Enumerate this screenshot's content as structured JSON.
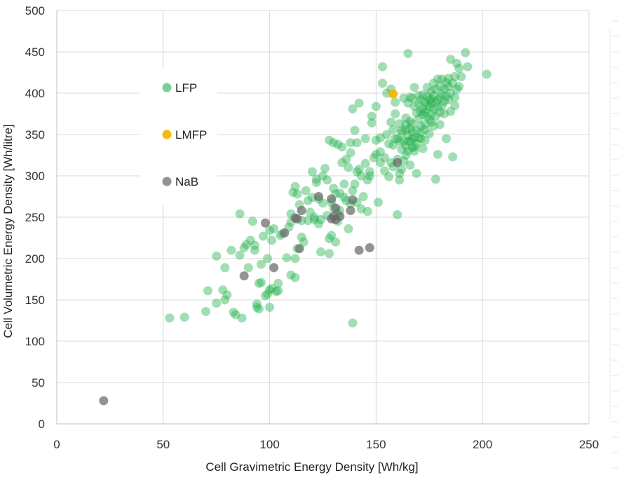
{
  "chart_data": {
    "type": "scatter",
    "xlabel": "Cell Gravimetric Energy Density [Wh/kg]",
    "ylabel": "Cell Volumetric Energy Density [Wh/litre]",
    "xlim": [
      0,
      250
    ],
    "ylim": [
      0,
      500
    ],
    "x_ticks": [
      0,
      50,
      100,
      150,
      200,
      250
    ],
    "y_ticks": [
      0,
      50,
      100,
      150,
      200,
      250,
      300,
      350,
      400,
      450,
      500
    ],
    "grid": true,
    "legend_position": "upper-left",
    "series": [
      {
        "name": "LFP",
        "color": "#22b14c",
        "opacity": 0.42,
        "points": [
          [
            53,
            128
          ],
          [
            60,
            129
          ],
          [
            70,
            136
          ],
          [
            71,
            161
          ],
          [
            75,
            146
          ],
          [
            75,
            203
          ],
          [
            78,
            162
          ],
          [
            79,
            189
          ],
          [
            79,
            150
          ],
          [
            80,
            156
          ],
          [
            82,
            210
          ],
          [
            83,
            135
          ],
          [
            84,
            132
          ],
          [
            86,
            204
          ],
          [
            86,
            254
          ],
          [
            87,
            128
          ],
          [
            88,
            213
          ],
          [
            89,
            217
          ],
          [
            90,
            189
          ],
          [
            91,
            222
          ],
          [
            92,
            245
          ],
          [
            93,
            216
          ],
          [
            93,
            210
          ],
          [
            94,
            141
          ],
          [
            94,
            145
          ],
          [
            95,
            139
          ],
          [
            95,
            170
          ],
          [
            96,
            193
          ],
          [
            96,
            171
          ],
          [
            97,
            227
          ],
          [
            98,
            155
          ],
          [
            99,
            200
          ],
          [
            99,
            157
          ],
          [
            100,
            162
          ],
          [
            100,
            141
          ],
          [
            100,
            234
          ],
          [
            101,
            222
          ],
          [
            101,
            164
          ],
          [
            102,
            236
          ],
          [
            103,
            160
          ],
          [
            104,
            170
          ],
          [
            104,
            161
          ],
          [
            105,
            228
          ],
          [
            106,
            230
          ],
          [
            108,
            201
          ],
          [
            109,
            238
          ],
          [
            110,
            244
          ],
          [
            110,
            180
          ],
          [
            110,
            254
          ],
          [
            111,
            280
          ],
          [
            112,
            200
          ],
          [
            112,
            177
          ],
          [
            112,
            287
          ],
          [
            113,
            278
          ],
          [
            113,
            212
          ],
          [
            114,
            265
          ],
          [
            115,
            246
          ],
          [
            115,
            226
          ],
          [
            116,
            220
          ],
          [
            117,
            282
          ],
          [
            118,
            270
          ],
          [
            118,
            246
          ],
          [
            119,
            256
          ],
          [
            120,
            305
          ],
          [
            120,
            274
          ],
          [
            121,
            250
          ],
          [
            121,
            247
          ],
          [
            122,
            292
          ],
          [
            122,
            296
          ],
          [
            123,
            242
          ],
          [
            123,
            272
          ],
          [
            124,
            208
          ],
          [
            124,
            247
          ],
          [
            125,
            300
          ],
          [
            125,
            267
          ],
          [
            126,
            309
          ],
          [
            127,
            252
          ],
          [
            127,
            295
          ],
          [
            128,
            206
          ],
          [
            128,
            343
          ],
          [
            128,
            224
          ],
          [
            129,
            228
          ],
          [
            129,
            268
          ],
          [
            130,
            261
          ],
          [
            130,
            285
          ],
          [
            130,
            340
          ],
          [
            131,
            220
          ],
          [
            131,
            278
          ],
          [
            132,
            338
          ],
          [
            132,
            245
          ],
          [
            132,
            254
          ],
          [
            133,
            279
          ],
          [
            133,
            258
          ],
          [
            134,
            316
          ],
          [
            134,
            335
          ],
          [
            135,
            290
          ],
          [
            135,
            274
          ],
          [
            136,
            270
          ],
          [
            136,
            320
          ],
          [
            137,
            310
          ],
          [
            137,
            236
          ],
          [
            138,
            340
          ],
          [
            138,
            328
          ],
          [
            138,
            266
          ],
          [
            139,
            122
          ],
          [
            139,
            381
          ],
          [
            139,
            282
          ],
          [
            140,
            290
          ],
          [
            140,
            355
          ],
          [
            141,
            340
          ],
          [
            141,
            305
          ],
          [
            141,
            268
          ],
          [
            142,
            308
          ],
          [
            142,
            388
          ],
          [
            143,
            300
          ],
          [
            143,
            260
          ],
          [
            144,
            275
          ],
          [
            145,
            345
          ],
          [
            145,
            315
          ],
          [
            146,
            295
          ],
          [
            146,
            257
          ],
          [
            147,
            300
          ],
          [
            147,
            305
          ],
          [
            148,
            372
          ],
          [
            148,
            364
          ],
          [
            149,
            322
          ],
          [
            150,
            343
          ],
          [
            150,
            384
          ],
          [
            150,
            326
          ],
          [
            151,
            268
          ],
          [
            152,
            346
          ],
          [
            152,
            316
          ],
          [
            152,
            329
          ],
          [
            153,
            412
          ],
          [
            153,
            432
          ],
          [
            154,
            322
          ],
          [
            154,
            306
          ],
          [
            155,
            400
          ],
          [
            155,
            350
          ],
          [
            156,
            339
          ],
          [
            156,
            299
          ],
          [
            157,
            405
          ],
          [
            157,
            365
          ],
          [
            157,
            316
          ],
          [
            158,
            356
          ],
          [
            158,
            311
          ],
          [
            158,
            337
          ],
          [
            159,
            345
          ],
          [
            159,
            375
          ],
          [
            159,
            389
          ],
          [
            160,
            345
          ],
          [
            160,
            320
          ],
          [
            160,
            253
          ],
          [
            161,
            342
          ],
          [
            161,
            363
          ],
          [
            161,
            303
          ],
          [
            161,
            295
          ],
          [
            162,
            332
          ],
          [
            162,
            355
          ],
          [
            162,
            308
          ],
          [
            162,
            352
          ],
          [
            163,
            342
          ],
          [
            163,
            394
          ],
          [
            163,
            318
          ],
          [
            164,
            370
          ],
          [
            164,
            336
          ],
          [
            164,
            356
          ],
          [
            164,
            325
          ],
          [
            165,
            448
          ],
          [
            165,
            388
          ],
          [
            165,
            349
          ],
          [
            165,
            330
          ],
          [
            165,
            342
          ],
          [
            166,
            366
          ],
          [
            166,
            357
          ],
          [
            166,
            342
          ],
          [
            166,
            313
          ],
          [
            167,
            394
          ],
          [
            167,
            363
          ],
          [
            167,
            345
          ],
          [
            167,
            334
          ],
          [
            167,
            353
          ],
          [
            168,
            384
          ],
          [
            168,
            330
          ],
          [
            168,
            346
          ],
          [
            168,
            407
          ],
          [
            169,
            355
          ],
          [
            169,
            339
          ],
          [
            169,
            376
          ],
          [
            169,
            303
          ],
          [
            170,
            387
          ],
          [
            170,
            346
          ],
          [
            170,
            369
          ],
          [
            170,
            397
          ],
          [
            171,
            392
          ],
          [
            171,
            345
          ],
          [
            171,
            378
          ],
          [
            171,
            360
          ],
          [
            172,
            374
          ],
          [
            172,
            398
          ],
          [
            172,
            381
          ],
          [
            172,
            333
          ],
          [
            173,
            377
          ],
          [
            173,
            389
          ],
          [
            173,
            362
          ],
          [
            173,
            343
          ],
          [
            174,
            372
          ],
          [
            174,
            385
          ],
          [
            174,
            396
          ],
          [
            174,
            407
          ],
          [
            175,
            383
          ],
          [
            175,
            368
          ],
          [
            175,
            392
          ],
          [
            175,
            351
          ],
          [
            176,
            388
          ],
          [
            176,
            375
          ],
          [
            176,
            402
          ],
          [
            176,
            365
          ],
          [
            177,
            397
          ],
          [
            177,
            381
          ],
          [
            177,
            412
          ],
          [
            177,
            360
          ],
          [
            178,
            296
          ],
          [
            178,
            389
          ],
          [
            178,
            372
          ],
          [
            178,
            405
          ],
          [
            179,
            392
          ],
          [
            179,
            383
          ],
          [
            179,
            417
          ],
          [
            179,
            326
          ],
          [
            180,
            395
          ],
          [
            180,
            377
          ],
          [
            180,
            408
          ],
          [
            180,
            362
          ],
          [
            181,
            385
          ],
          [
            181,
            399
          ],
          [
            181,
            417
          ],
          [
            182,
            390
          ],
          [
            182,
            405
          ],
          [
            182,
            375
          ],
          [
            183,
            396
          ],
          [
            183,
            413
          ],
          [
            183,
            345
          ],
          [
            184,
            408
          ],
          [
            184,
            392
          ],
          [
            184,
            418
          ],
          [
            185,
            400
          ],
          [
            185,
            378
          ],
          [
            185,
            441
          ],
          [
            186,
            412
          ],
          [
            186,
            323
          ],
          [
            187,
            395
          ],
          [
            187,
            385
          ],
          [
            187,
            420
          ],
          [
            188,
            405
          ],
          [
            188,
            436
          ],
          [
            189,
            430
          ],
          [
            189,
            408
          ],
          [
            190,
            420
          ],
          [
            192,
            449
          ],
          [
            193,
            432
          ],
          [
            202,
            423
          ],
          [
            166,
            395
          ],
          [
            164,
            362
          ],
          [
            171,
            352
          ],
          [
            176,
            392
          ],
          [
            168,
            335
          ],
          [
            173,
            356
          ]
        ]
      },
      {
        "name": "LMFP",
        "color": "#f5b400",
        "opacity": 0.92,
        "points": [
          [
            158,
            399
          ]
        ]
      },
      {
        "name": "NaB",
        "color": "#6a6a6a",
        "opacity": 0.72,
        "points": [
          [
            22,
            28
          ],
          [
            88,
            179
          ],
          [
            98,
            243
          ],
          [
            102,
            189
          ],
          [
            107,
            231
          ],
          [
            112,
            249
          ],
          [
            113,
            248
          ],
          [
            114,
            212
          ],
          [
            115,
            258
          ],
          [
            123,
            275
          ],
          [
            129,
            272
          ],
          [
            129,
            248
          ],
          [
            130,
            251
          ],
          [
            131,
            247
          ],
          [
            131,
            261
          ],
          [
            133,
            251
          ],
          [
            138,
            258
          ],
          [
            139,
            271
          ],
          [
            142,
            210
          ],
          [
            147,
            213
          ],
          [
            160,
            316
          ]
        ]
      }
    ]
  }
}
